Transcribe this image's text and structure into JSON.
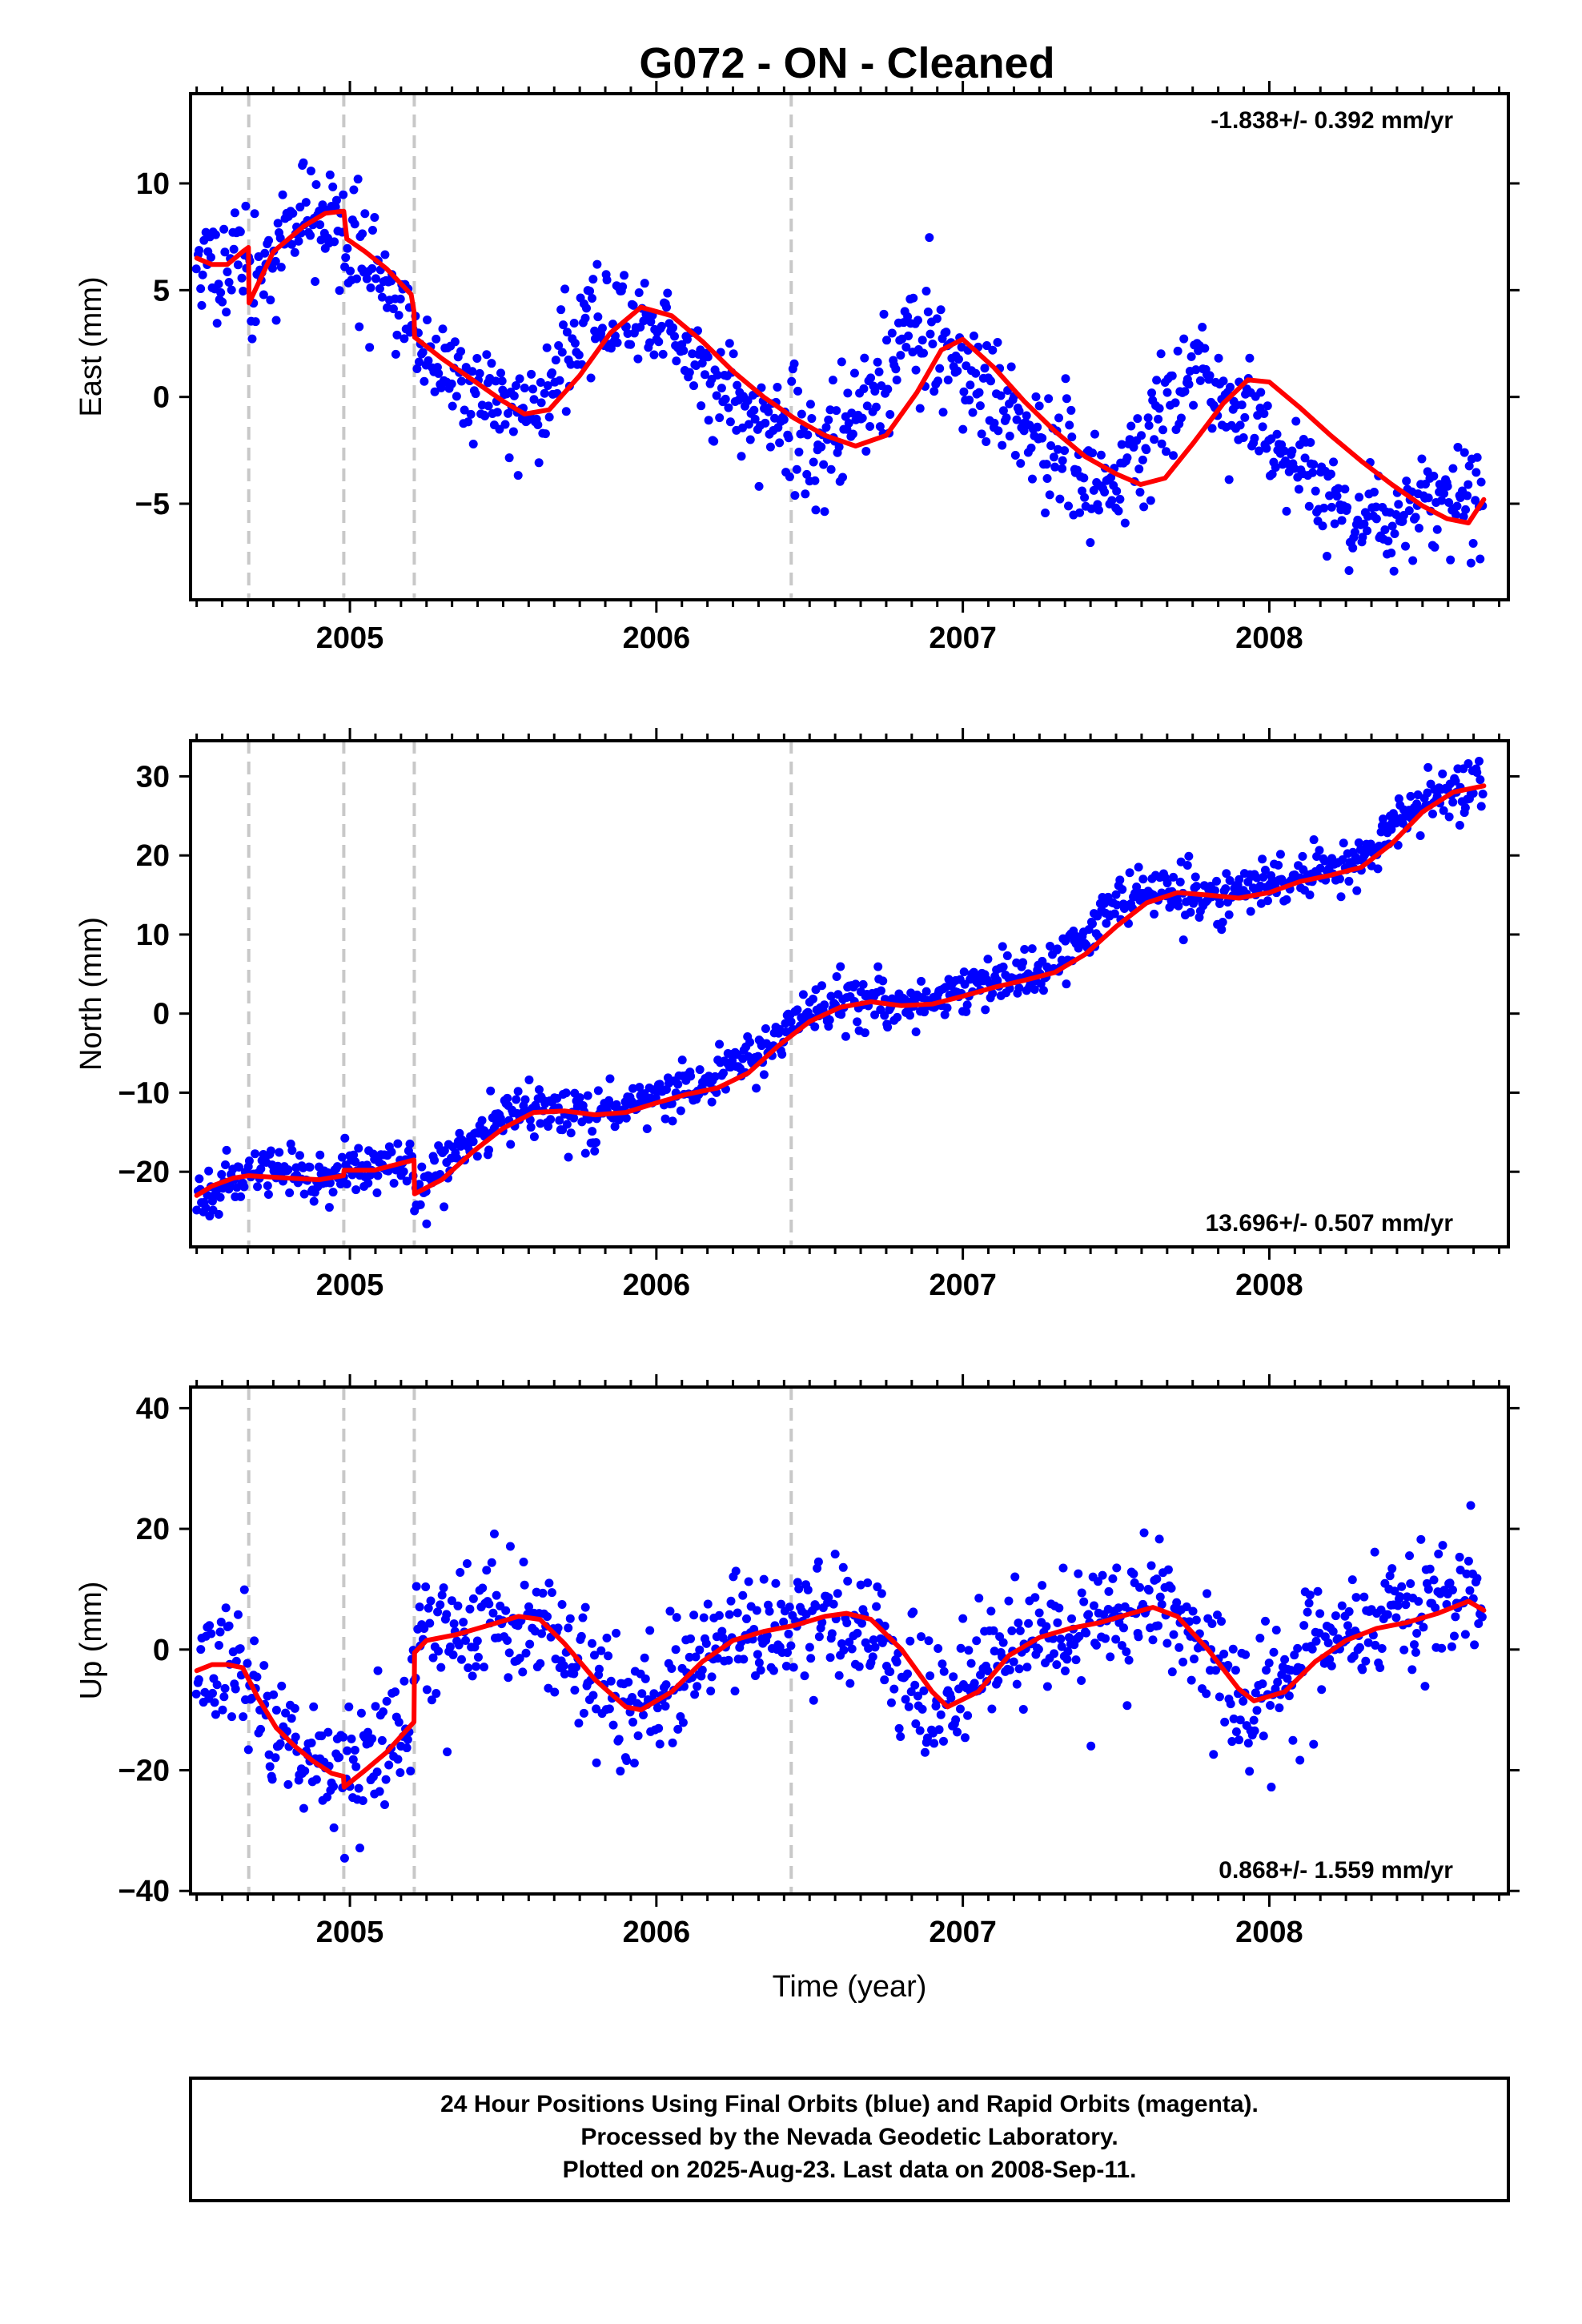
{
  "title": "G072  - ON - Cleaned",
  "footer": {
    "line1": "24 Hour Positions Using Final Orbits (blue) and Rapid Orbits (magenta).",
    "line2": "Processed by the Nevada Geodetic Laboratory.",
    "line3": "Plotted on 2025-Aug-23. Last data on 2008-Sep-11."
  },
  "colors": {
    "points": "#0000ff",
    "model": "#ff0000",
    "steps": "#c8c8c8",
    "frame": "#000000"
  },
  "chart_data": [
    {
      "type": "scatter",
      "ylabel": "East (mm)",
      "xlabel": "",
      "xlim": [
        2004.48,
        2008.78
      ],
      "ylim": [
        -9.5,
        14.2
      ],
      "yticks": [
        -5,
        0,
        5,
        10
      ],
      "yticks_text": [
        "−5",
        "0",
        "5",
        "10"
      ],
      "xticks": [
        2005,
        2006,
        2007,
        2008
      ],
      "xticks_text": [
        "2005",
        "2006",
        "2007",
        "2008"
      ],
      "rate": "-1.838+/- 0.392 mm/yr",
      "rate_position": "top-right",
      "steps": [
        2004.67,
        2004.98,
        2005.21,
        2006.44
      ],
      "grid": false,
      "series": [
        {
          "kind": "points",
          "x": [
            2004.5,
            2004.53,
            2004.56,
            2004.59,
            2004.62,
            2004.65,
            2004.66,
            2004.68,
            2004.71,
            2004.74,
            2004.77,
            2004.8,
            2004.84,
            2004.88,
            2004.92,
            2004.96,
            2004.98,
            2005.0,
            2005.03,
            2005.06,
            2005.1,
            2005.14,
            2005.18,
            2005.21,
            2005.23,
            2005.28,
            2005.33,
            2005.38,
            2005.43,
            2005.48,
            2005.53,
            2005.58,
            2005.63,
            2005.68,
            2005.73,
            2005.78,
            2005.83,
            2005.88,
            2005.93,
            2005.98,
            2006.03,
            2006.08,
            2006.13,
            2006.18,
            2006.23,
            2006.28,
            2006.33,
            2006.38,
            2006.43,
            2006.48,
            2006.53,
            2006.58,
            2006.63,
            2006.68,
            2006.73,
            2006.78,
            2006.83,
            2006.88,
            2006.93,
            2006.98,
            2007.03,
            2007.08,
            2007.13,
            2007.18,
            2007.23,
            2007.28,
            2007.33,
            2007.38,
            2007.43,
            2007.48,
            2007.53,
            2007.58,
            2007.63,
            2007.68,
            2007.73,
            2007.78,
            2007.83,
            2007.88,
            2007.93,
            2007.98,
            2008.03,
            2008.08,
            2008.13,
            2008.18,
            2008.23,
            2008.28,
            2008.33,
            2008.38,
            2008.43,
            2008.48,
            2008.53,
            2008.58,
            2008.63,
            2008.68,
            2008.7
          ],
          "y": [
            6.3,
            5.9,
            6.1,
            6.0,
            6.5,
            6.9,
            7.0,
            4.6,
            5.5,
            6.5,
            7.4,
            7.9,
            8.3,
            8.6,
            8.5,
            8.2,
            7.4,
            7.0,
            6.6,
            6.1,
            5.5,
            4.8,
            4.0,
            2.8,
            2.5,
            1.8,
            1.2,
            0.6,
            0.0,
            -0.5,
            -0.8,
            -0.7,
            0.0,
            1.3,
            2.5,
            3.4,
            4.0,
            4.2,
            4.0,
            3.5,
            2.8,
            2.1,
            1.4,
            0.7,
            0.1,
            -0.5,
            -1.0,
            -1.4,
            -1.8,
            -2.1,
            -2.3,
            -2.1,
            -1.5,
            -0.5,
            0.7,
            1.8,
            2.5,
            2.8,
            2.5,
            1.9,
            1.1,
            0.3,
            -0.5,
            -1.3,
            -2.0,
            -2.7,
            -3.3,
            -3.8,
            -4.1,
            -4.1,
            -3.6,
            -2.6,
            -1.4,
            -0.3,
            0.6,
            0.9,
            0.6,
            -0.1,
            -0.8,
            -1.5,
            -2.2,
            -2.9,
            -3.6,
            -4.3,
            -5.0,
            -5.5,
            -5.8,
            -5.8,
            -5.3,
            -4.8,
            -4.8,
            -4.8,
            -4.8,
            -4.8,
            -4.8
          ],
          "noise": 1.2,
          "seed": 11
        },
        {
          "kind": "model",
          "x": [
            2004.5,
            2004.55,
            2004.6,
            2004.65,
            2004.669,
            2004.671,
            2004.75,
            2004.85,
            2004.92,
            2004.98,
            2004.99,
            2005.05,
            2005.12,
            2005.2,
            2005.209,
            2005.211,
            2005.3,
            2005.4,
            2005.5,
            2005.57,
            2005.65,
            2005.75,
            2005.85,
            2005.95,
            2006.05,
            2006.15,
            2006.25,
            2006.35,
            2006.45,
            2006.55,
            2006.65,
            2006.75,
            2006.85,
            2006.93,
            2007.0,
            2007.1,
            2007.2,
            2007.3,
            2007.4,
            2007.5,
            2007.58,
            2007.66,
            2007.75,
            2007.85,
            2007.93,
            2008.0,
            2008.1,
            2008.2,
            2008.3,
            2008.4,
            2008.5,
            2008.58,
            2008.65,
            2008.7
          ],
          "y": [
            6.5,
            6.2,
            6.2,
            6.8,
            7.0,
            4.4,
            6.8,
            8.0,
            8.6,
            8.7,
            7.4,
            6.8,
            6.0,
            4.8,
            4.0,
            2.8,
            1.8,
            0.8,
            -0.2,
            -0.8,
            -0.6,
            1.0,
            3.0,
            4.2,
            3.8,
            2.6,
            1.2,
            0.0,
            -1.0,
            -1.8,
            -2.3,
            -1.8,
            0.2,
            2.2,
            2.7,
            1.4,
            -0.2,
            -1.6,
            -2.8,
            -3.6,
            -4.1,
            -3.8,
            -2.2,
            -0.3,
            0.8,
            0.7,
            -0.5,
            -1.8,
            -3.0,
            -4.1,
            -5.1,
            -5.7,
            -5.9,
            -4.8
          ]
        }
      ]
    },
    {
      "type": "scatter",
      "ylabel": "North (mm)",
      "xlabel": "",
      "xlim": [
        2004.48,
        2008.78
      ],
      "ylim": [
        -29.5,
        34.5
      ],
      "yticks": [
        -20,
        -10,
        0,
        10,
        20,
        30
      ],
      "yticks_text": [
        "−20",
        "−10",
        "0",
        "10",
        "20",
        "30"
      ],
      "xticks": [
        2005,
        2006,
        2007,
        2008
      ],
      "xticks_text": [
        "2005",
        "2006",
        "2007",
        "2008"
      ],
      "rate": "13.696+/- 0.507 mm/yr",
      "rate_position": "bottom-right",
      "steps": [
        2004.67,
        2004.98,
        2005.21,
        2006.44
      ],
      "grid": false,
      "series": [
        {
          "kind": "points",
          "x": [
            2004.5,
            2004.55,
            2004.6,
            2004.66,
            2004.68,
            2004.75,
            2004.82,
            2004.9,
            2004.97,
            2004.99,
            2005.05,
            2005.12,
            2005.2,
            2005.21,
            2005.25,
            2005.32,
            2005.4,
            2005.48,
            2005.56,
            2005.64,
            2005.72,
            2005.8,
            2005.88,
            2005.96,
            2006.04,
            2006.12,
            2006.2,
            2006.28,
            2006.36,
            2006.44,
            2006.52,
            2006.6,
            2006.68,
            2006.76,
            2006.84,
            2006.92,
            2007.0,
            2007.08,
            2007.16,
            2007.24,
            2007.32,
            2007.4,
            2007.48,
            2007.56,
            2007.64,
            2007.72,
            2007.8,
            2007.88,
            2007.96,
            2008.04,
            2008.12,
            2008.2,
            2008.28,
            2008.36,
            2008.44,
            2008.52,
            2008.6,
            2008.66,
            2008.7
          ],
          "y": [
            -23,
            -22,
            -21,
            -20.5,
            -20.5,
            -20.5,
            -20.8,
            -21.0,
            -20.3,
            -20.5,
            -19.8,
            -19.0,
            -18.3,
            -22.8,
            -21.5,
            -19.0,
            -16.0,
            -13.5,
            -12.3,
            -12.2,
            -12.8,
            -13.0,
            -12.0,
            -11.0,
            -10.2,
            -9.5,
            -8.5,
            -6.5,
            -4.0,
            -1.5,
            0.5,
            1.3,
            1.2,
            0.8,
            1.0,
            2.0,
            3.0,
            3.8,
            4.5,
            5.5,
            7.5,
            10.0,
            13.0,
            14.8,
            15.2,
            14.8,
            14.5,
            14.8,
            16.0,
            16.8,
            17.3,
            18.0,
            19.5,
            22.5,
            25.5,
            27.5,
            28.5,
            28.8,
            28.6
          ],
          "noise": 1.6,
          "seed": 23
        },
        {
          "kind": "model",
          "x": [
            2004.5,
            2004.55,
            2004.62,
            2004.669,
            2004.671,
            2004.8,
            2004.9,
            2004.979,
            2004.981,
            2005.08,
            2005.209,
            2005.211,
            2005.3,
            2005.4,
            2005.5,
            2005.6,
            2005.7,
            2005.8,
            2005.9,
            2006.0,
            2006.1,
            2006.2,
            2006.3,
            2006.4,
            2006.5,
            2006.6,
            2006.7,
            2006.8,
            2006.9,
            2007.0,
            2007.1,
            2007.2,
            2007.3,
            2007.4,
            2007.5,
            2007.6,
            2007.7,
            2007.8,
            2007.9,
            2008.0,
            2008.1,
            2008.2,
            2008.3,
            2008.4,
            2008.5,
            2008.6,
            2008.7
          ],
          "y": [
            -23.0,
            -21.8,
            -20.8,
            -20.5,
            -20.5,
            -20.8,
            -21.0,
            -20.5,
            -19.8,
            -19.8,
            -18.5,
            -22.8,
            -21.0,
            -17.5,
            -14.5,
            -12.5,
            -12.3,
            -12.8,
            -12.5,
            -11.3,
            -10.2,
            -9.4,
            -7.5,
            -4.0,
            -1.0,
            0.8,
            1.5,
            1.0,
            1.2,
            2.2,
            3.3,
            4.2,
            5.2,
            7.5,
            11.0,
            14.0,
            15.3,
            15.0,
            14.6,
            15.3,
            16.7,
            17.5,
            18.5,
            21.5,
            25.5,
            28.0,
            28.8
          ]
        }
      ]
    },
    {
      "type": "scatter",
      "ylabel": "Up (mm)",
      "xlabel": "Time (year)",
      "xlim": [
        2004.48,
        2008.78
      ],
      "ylim": [
        -40.5,
        43.5
      ],
      "yticks": [
        -40,
        -20,
        0,
        20,
        40
      ],
      "yticks_text": [
        "−40",
        "−20",
        "0",
        "20",
        "40"
      ],
      "xticks": [
        2005,
        2006,
        2007,
        2008
      ],
      "xticks_text": [
        "2005",
        "2006",
        "2007",
        "2008"
      ],
      "rate": "0.868+/- 1.559 mm/yr",
      "rate_position": "bottom-right",
      "steps": [
        2004.67,
        2004.98,
        2005.21,
        2006.44
      ],
      "grid": false,
      "series": [
        {
          "kind": "points",
          "x": [
            2004.5,
            2004.55,
            2004.6,
            2004.65,
            2004.7,
            2004.76,
            2004.82,
            2004.88,
            2004.94,
            2004.98,
            2005.03,
            2005.09,
            2005.15,
            2005.2,
            2005.21,
            2005.25,
            2005.32,
            2005.4,
            2005.48,
            2005.56,
            2005.64,
            2005.72,
            2005.8,
            2005.88,
            2005.96,
            2006.04,
            2006.12,
            2006.2,
            2006.28,
            2006.36,
            2006.44,
            2006.52,
            2006.6,
            2006.68,
            2006.76,
            2006.84,
            2006.92,
            2007.0,
            2007.08,
            2007.16,
            2007.24,
            2007.32,
            2007.4,
            2007.48,
            2007.56,
            2007.64,
            2007.72,
            2007.8,
            2007.88,
            2007.94,
            2008.0,
            2008.08,
            2008.16,
            2008.24,
            2008.32,
            2008.4,
            2008.48,
            2008.56,
            2008.64,
            2008.7
          ],
          "y": [
            -3,
            -2.5,
            -2.5,
            -3.5,
            -8,
            -13,
            -16,
            -18.5,
            -20.5,
            -21,
            -21.5,
            -19,
            -15,
            -13,
            -1,
            1.5,
            2.5,
            3.5,
            5,
            5.5,
            4,
            -1,
            -6.5,
            -10,
            -9,
            -6,
            -2,
            1.5,
            2.5,
            3.5,
            4.5,
            5.5,
            6,
            4,
            -1,
            -7,
            -9.5,
            -8,
            -3,
            1,
            2.5,
            4,
            4,
            5.5,
            7,
            7,
            4.5,
            -1.5,
            -7,
            -9,
            -7,
            -3,
            1,
            3,
            4,
            5,
            6,
            7,
            8,
            6.5
          ],
          "noise": 5.0,
          "seed": 37
        },
        {
          "kind": "model",
          "x": [
            2004.5,
            2004.55,
            2004.6,
            2004.65,
            2004.7,
            2004.76,
            2004.82,
            2004.88,
            2004.94,
            2004.979,
            2004.981,
            2005.05,
            2005.12,
            2005.209,
            2005.211,
            2005.25,
            2005.35,
            2005.45,
            2005.55,
            2005.62,
            2005.7,
            2005.8,
            2005.9,
            2005.95,
            2006.05,
            2006.15,
            2006.25,
            2006.35,
            2006.45,
            2006.55,
            2006.62,
            2006.7,
            2006.8,
            2006.9,
            2006.95,
            2007.05,
            2007.15,
            2007.25,
            2007.35,
            2007.45,
            2007.55,
            2007.62,
            2007.7,
            2007.8,
            2007.9,
            2007.95,
            2008.05,
            2008.15,
            2008.25,
            2008.35,
            2008.45,
            2008.55,
            2008.65,
            2008.7
          ],
          "y": [
            -3.5,
            -2.5,
            -2.5,
            -3.0,
            -8.0,
            -13.0,
            -16.0,
            -18.5,
            -20.5,
            -21.0,
            -22.8,
            -20.0,
            -17.0,
            -12.0,
            -0.5,
            1.5,
            2.5,
            4.0,
            5.5,
            5.0,
            1.0,
            -5.0,
            -9.5,
            -10.0,
            -7.0,
            -2.0,
            1.5,
            3.0,
            4.0,
            5.5,
            6.0,
            5.0,
            0.0,
            -7.0,
            -9.5,
            -7.0,
            -1.0,
            2.0,
            3.5,
            4.5,
            6.0,
            7.0,
            5.5,
            0.0,
            -6.5,
            -8.5,
            -7.0,
            -2.0,
            1.5,
            3.5,
            4.5,
            6.0,
            8.0,
            6.5
          ]
        }
      ]
    }
  ]
}
